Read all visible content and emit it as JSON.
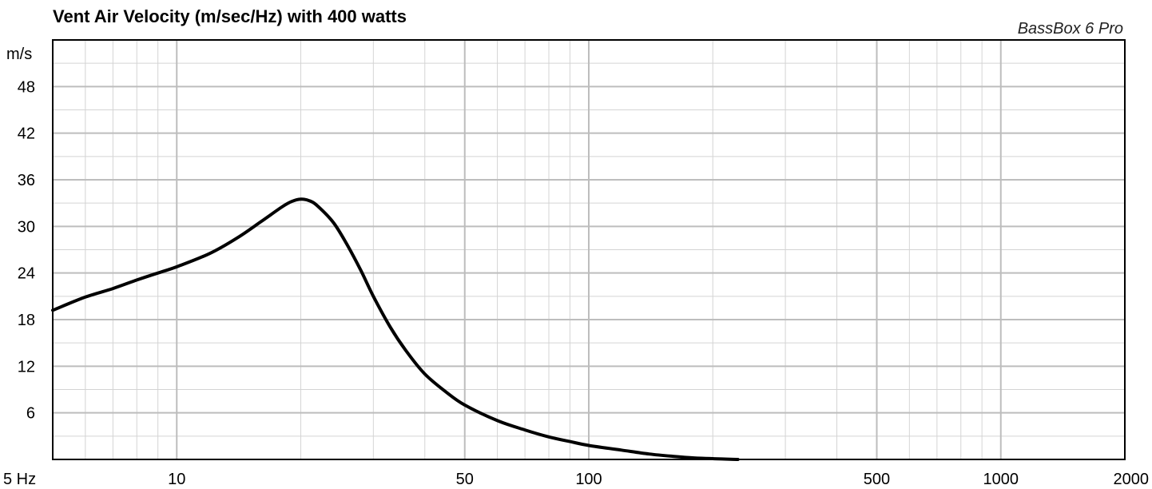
{
  "chart_data": {
    "type": "line",
    "title": "Vent Air Velocity (m/sec/Hz) with 400 watts",
    "brand": "BassBox 6 Pro",
    "y_unit": "m/s",
    "x_scale": "log",
    "xlim": [
      5,
      2000
    ],
    "ylim": [
      0,
      54
    ],
    "grid": true,
    "x_ticks": [
      {
        "value": 5,
        "label": "5 Hz"
      },
      {
        "value": 10,
        "label": "10"
      },
      {
        "value": 50,
        "label": "50"
      },
      {
        "value": 100,
        "label": "100"
      },
      {
        "value": 500,
        "label": "500"
      },
      {
        "value": 1000,
        "label": "1000"
      },
      {
        "value": 2000,
        "label": "2000"
      }
    ],
    "y_ticks": [
      {
        "value": 6,
        "label": "6"
      },
      {
        "value": 12,
        "label": "12"
      },
      {
        "value": 18,
        "label": "18"
      },
      {
        "value": 24,
        "label": "24"
      },
      {
        "value": 30,
        "label": "30"
      },
      {
        "value": 36,
        "label": "36"
      },
      {
        "value": 42,
        "label": "42"
      },
      {
        "value": 48,
        "label": "48"
      }
    ],
    "x_minor_grid": [
      6,
      7,
      8,
      9,
      20,
      30,
      40,
      60,
      70,
      80,
      90,
      200,
      300,
      400,
      600,
      700,
      800,
      900
    ],
    "y_minor_grid": [
      3,
      9,
      15,
      21,
      27,
      33,
      39,
      45,
      51
    ],
    "series": [
      {
        "points": [
          [
            5,
            19.2
          ],
          [
            6,
            20.9
          ],
          [
            7,
            22.0
          ],
          [
            8,
            23.1
          ],
          [
            9,
            24.0
          ],
          [
            10,
            24.8
          ],
          [
            12,
            26.5
          ],
          [
            14,
            28.5
          ],
          [
            16,
            30.6
          ],
          [
            18,
            32.5
          ],
          [
            19,
            33.2
          ],
          [
            20,
            33.5
          ],
          [
            21,
            33.3
          ],
          [
            22,
            32.6
          ],
          [
            24,
            30.5
          ],
          [
            26,
            27.5
          ],
          [
            28,
            24.3
          ],
          [
            30,
            21.0
          ],
          [
            33,
            17.0
          ],
          [
            36,
            14.0
          ],
          [
            40,
            11.0
          ],
          [
            45,
            8.7
          ],
          [
            50,
            7.0
          ],
          [
            60,
            5.0
          ],
          [
            70,
            3.8
          ],
          [
            80,
            2.9
          ],
          [
            90,
            2.3
          ],
          [
            100,
            1.8
          ],
          [
            120,
            1.2
          ],
          [
            140,
            0.7
          ],
          [
            160,
            0.4
          ],
          [
            180,
            0.2
          ],
          [
            200,
            0.1
          ],
          [
            230,
            0.0
          ]
        ]
      }
    ]
  }
}
